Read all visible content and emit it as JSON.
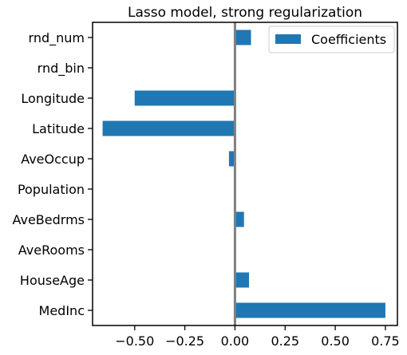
{
  "chart_data": {
    "type": "bar",
    "orientation": "horizontal",
    "title": "Lasso model, strong regularization",
    "xlabel": "",
    "ylabel": "",
    "categories": [
      "MedInc",
      "HouseAge",
      "AveRooms",
      "AveBedrms",
      "Population",
      "AveOccup",
      "Latitude",
      "Longitude",
      "rnd_bin",
      "rnd_num"
    ],
    "series": [
      {
        "name": "Coefficients",
        "color": "#1f77b4",
        "values": [
          0.75,
          0.07,
          0.0,
          0.045,
          0.0,
          -0.03,
          -0.66,
          -0.5,
          0.0,
          0.08
        ]
      }
    ],
    "xlim": [
      -0.71,
      0.81
    ],
    "xticks": [
      -0.5,
      -0.25,
      0.0,
      0.25,
      0.5,
      0.75
    ],
    "xtick_labels": [
      "−0.50",
      "−0.25",
      "0.00",
      "0.25",
      "0.50",
      "0.75"
    ],
    "zero_line": true,
    "zero_line_color": "#808080",
    "grid": false,
    "legend_position": "top-right"
  }
}
